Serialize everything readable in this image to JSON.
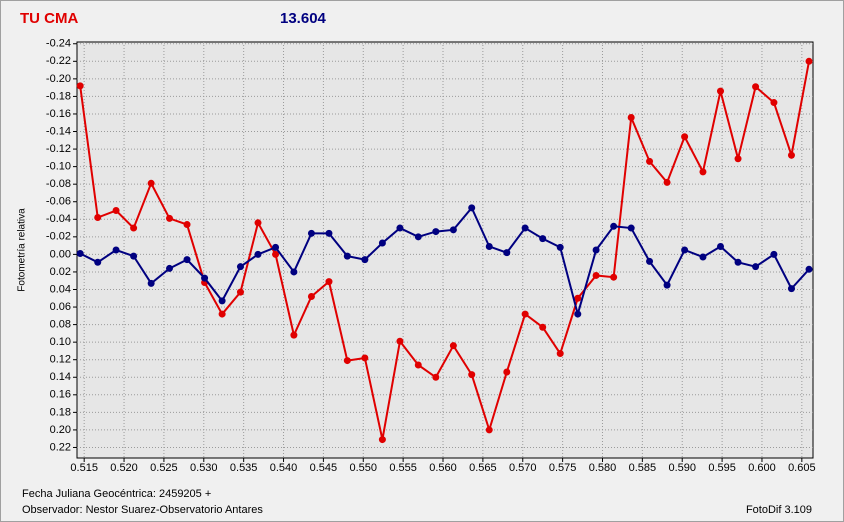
{
  "chart_data": {
    "type": "line",
    "title": "TU CMA",
    "subtitle": "13.604",
    "y_label": "Fotometría relativa",
    "footer_left": [
      "Fecha Juliana Geocéntrica: 2459205 +",
      "Observador: Nestor Suarez-Observatorio Antares"
    ],
    "footer_right": "FotoDif 3.109",
    "x": [
      0.5145,
      0.5167,
      0.519,
      0.5212,
      0.5234,
      0.5257,
      0.5279,
      0.5301,
      0.5323,
      0.5346,
      0.5368,
      0.539,
      0.5413,
      0.5435,
      0.5457,
      0.548,
      0.5502,
      0.5524,
      0.5546,
      0.5569,
      0.5591,
      0.5613,
      0.5636,
      0.5658,
      0.568,
      0.5703,
      0.5725,
      0.5747,
      0.5769,
      0.5792,
      0.5814,
      0.5836,
      0.5859,
      0.5881,
      0.5903,
      0.5926,
      0.5948,
      0.597,
      0.5992,
      0.6015,
      0.6037,
      0.6059
    ],
    "series": [
      {
        "color": "#e00000",
        "values": [
          -0.192,
          -0.042,
          -0.05,
          -0.03,
          -0.081,
          -0.041,
          -0.034,
          0.032,
          0.068,
          0.043,
          -0.036,
          0.0,
          0.092,
          0.048,
          0.031,
          0.121,
          0.118,
          0.211,
          0.099,
          0.126,
          0.14,
          0.104,
          0.137,
          0.2,
          0.134,
          0.068,
          0.083,
          0.113,
          0.05,
          0.024,
          0.026,
          -0.156,
          -0.106,
          -0.082,
          -0.134,
          -0.094,
          -0.186,
          -0.109,
          -0.191,
          -0.173,
          -0.113,
          -0.22
        ]
      },
      {
        "color": "#000080",
        "values": [
          -0.001,
          0.009,
          -0.005,
          0.002,
          0.033,
          0.016,
          0.006,
          0.027,
          0.053,
          0.014,
          0.0,
          -0.008,
          0.02,
          -0.024,
          -0.024,
          0.002,
          0.006,
          -0.013,
          -0.03,
          -0.02,
          -0.026,
          -0.028,
          -0.053,
          -0.009,
          -0.002,
          -0.03,
          -0.018,
          -0.008,
          0.068,
          -0.005,
          -0.032,
          -0.03,
          0.008,
          0.035,
          -0.005,
          0.003,
          -0.009,
          0.009,
          0.014,
          0.0,
          0.039,
          0.017
        ]
      }
    ],
    "xlim": [
      0.5141,
      0.6064
    ],
    "xticks": [
      0.515,
      {
        "value": 0.52,
        "label": "0.520"
      },
      0.525,
      {
        "value": 0.53,
        "label": "0.530"
      },
      0.535,
      {
        "value": 0.54,
        "label": "0.540"
      },
      0.545,
      {
        "value": 0.55,
        "label": "0.550"
      },
      0.555,
      {
        "value": 0.56,
        "label": "0.560"
      },
      0.565,
      {
        "value": 0.57,
        "label": "0.570"
      },
      0.575,
      {
        "value": 0.58,
        "label": "0.580"
      },
      0.585,
      {
        "value": 0.59,
        "label": "0.590"
      },
      0.595,
      {
        "value": 0.6,
        "label": "0.600"
      },
      0.605
    ],
    "ylim": [
      -0.242,
      0.232
    ],
    "y_inverted": true,
    "yticks": [
      -0.24,
      -0.22,
      {
        "value": -0.2,
        "label": "-0.20"
      },
      -0.18,
      -0.16,
      -0.14,
      -0.12,
      {
        "value": -0.1,
        "label": "-0.10"
      },
      -0.08,
      -0.06,
      -0.04,
      -0.02,
      {
        "value": 0,
        "label": "0.00"
      },
      0.02,
      0.04,
      0.06,
      0.08,
      {
        "value": 0.1,
        "label": "0.10"
      },
      0.12,
      0.14,
      0.16,
      0.18,
      {
        "value": 0.2,
        "label": "0.20"
      },
      0.22
    ],
    "grid": true
  }
}
